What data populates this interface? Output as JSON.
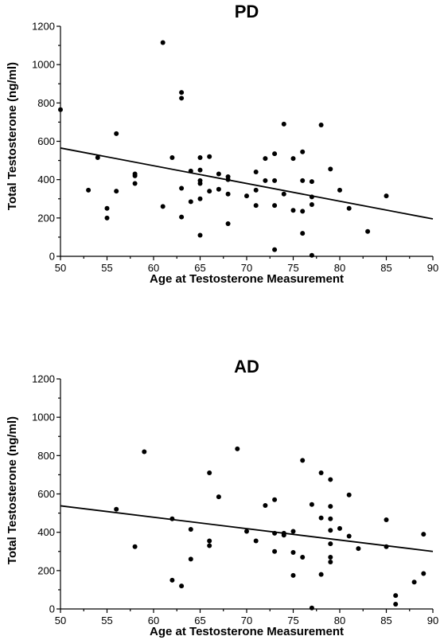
{
  "chart_data": [
    {
      "type": "scatter",
      "title": "PD",
      "xlabel": "Age at Testosterone Measurement",
      "ylabel": "Total Testosterone (ng/ml)",
      "xlim": [
        50,
        90
      ],
      "ylim": [
        0,
        1200
      ],
      "xticks": [
        "50",
        "55",
        "60",
        "65",
        "70",
        "75",
        "80",
        "85",
        "90"
      ],
      "yticks": [
        "0",
        "200",
        "400",
        "600",
        "800",
        "1000",
        "1200"
      ],
      "grid": false,
      "trendline": {
        "x": [
          50,
          90
        ],
        "y": [
          565,
          195
        ]
      },
      "points": [
        {
          "x": 50,
          "y": 765
        },
        {
          "x": 53,
          "y": 345
        },
        {
          "x": 54,
          "y": 515
        },
        {
          "x": 55,
          "y": 250
        },
        {
          "x": 55,
          "y": 200
        },
        {
          "x": 56,
          "y": 640
        },
        {
          "x": 56,
          "y": 340
        },
        {
          "x": 58,
          "y": 430
        },
        {
          "x": 58,
          "y": 420
        },
        {
          "x": 58,
          "y": 380
        },
        {
          "x": 61,
          "y": 1115
        },
        {
          "x": 61,
          "y": 260
        },
        {
          "x": 62,
          "y": 515
        },
        {
          "x": 63,
          "y": 855
        },
        {
          "x": 63,
          "y": 825
        },
        {
          "x": 63,
          "y": 355
        },
        {
          "x": 63,
          "y": 205
        },
        {
          "x": 64,
          "y": 445
        },
        {
          "x": 64,
          "y": 285
        },
        {
          "x": 65,
          "y": 515
        },
        {
          "x": 65,
          "y": 450
        },
        {
          "x": 65,
          "y": 395
        },
        {
          "x": 65,
          "y": 380
        },
        {
          "x": 65,
          "y": 300
        },
        {
          "x": 65,
          "y": 110
        },
        {
          "x": 66,
          "y": 520
        },
        {
          "x": 66,
          "y": 340
        },
        {
          "x": 67,
          "y": 430
        },
        {
          "x": 67,
          "y": 350
        },
        {
          "x": 68,
          "y": 415
        },
        {
          "x": 68,
          "y": 400
        },
        {
          "x": 68,
          "y": 325
        },
        {
          "x": 68,
          "y": 170
        },
        {
          "x": 70,
          "y": 315
        },
        {
          "x": 71,
          "y": 440
        },
        {
          "x": 71,
          "y": 345
        },
        {
          "x": 71,
          "y": 265
        },
        {
          "x": 72,
          "y": 510
        },
        {
          "x": 72,
          "y": 395
        },
        {
          "x": 73,
          "y": 535
        },
        {
          "x": 73,
          "y": 395
        },
        {
          "x": 73,
          "y": 265
        },
        {
          "x": 73,
          "y": 35
        },
        {
          "x": 74,
          "y": 690
        },
        {
          "x": 74,
          "y": 325
        },
        {
          "x": 75,
          "y": 510
        },
        {
          "x": 75,
          "y": 240
        },
        {
          "x": 76,
          "y": 545
        },
        {
          "x": 76,
          "y": 395
        },
        {
          "x": 76,
          "y": 235
        },
        {
          "x": 76,
          "y": 120
        },
        {
          "x": 77,
          "y": 390
        },
        {
          "x": 77,
          "y": 310
        },
        {
          "x": 77,
          "y": 270
        },
        {
          "x": 77,
          "y": 5
        },
        {
          "x": 78,
          "y": 685
        },
        {
          "x": 79,
          "y": 455
        },
        {
          "x": 80,
          "y": 345
        },
        {
          "x": 81,
          "y": 250
        },
        {
          "x": 83,
          "y": 130
        },
        {
          "x": 85,
          "y": 315
        }
      ]
    },
    {
      "type": "scatter",
      "title": "AD",
      "xlabel": "Age at Testosterone Measurement",
      "ylabel": "Total Testosterone (ng/ml)",
      "xlim": [
        50,
        90
      ],
      "ylim": [
        0,
        1200
      ],
      "xticks": [
        "50",
        "55",
        "60",
        "65",
        "70",
        "75",
        "80",
        "85",
        "90"
      ],
      "yticks": [
        "0",
        "200",
        "400",
        "600",
        "800",
        "1000",
        "1200"
      ],
      "grid": false,
      "trendline": {
        "x": [
          50,
          90
        ],
        "y": [
          538,
          300
        ]
      },
      "points": [
        {
          "x": 56,
          "y": 520
        },
        {
          "x": 58,
          "y": 325
        },
        {
          "x": 59,
          "y": 820
        },
        {
          "x": 62,
          "y": 470
        },
        {
          "x": 62,
          "y": 150
        },
        {
          "x": 63,
          "y": 120
        },
        {
          "x": 64,
          "y": 415
        },
        {
          "x": 64,
          "y": 260
        },
        {
          "x": 66,
          "y": 710
        },
        {
          "x": 66,
          "y": 355
        },
        {
          "x": 66,
          "y": 330
        },
        {
          "x": 67,
          "y": 585
        },
        {
          "x": 69,
          "y": 835
        },
        {
          "x": 70,
          "y": 405
        },
        {
          "x": 71,
          "y": 355
        },
        {
          "x": 72,
          "y": 540
        },
        {
          "x": 73,
          "y": 570
        },
        {
          "x": 73,
          "y": 395
        },
        {
          "x": 73,
          "y": 300
        },
        {
          "x": 74,
          "y": 395
        },
        {
          "x": 74,
          "y": 385
        },
        {
          "x": 75,
          "y": 405
        },
        {
          "x": 75,
          "y": 295
        },
        {
          "x": 75,
          "y": 175
        },
        {
          "x": 76,
          "y": 775
        },
        {
          "x": 76,
          "y": 270
        },
        {
          "x": 77,
          "y": 545
        },
        {
          "x": 77,
          "y": 5
        },
        {
          "x": 78,
          "y": 710
        },
        {
          "x": 78,
          "y": 475
        },
        {
          "x": 78,
          "y": 180
        },
        {
          "x": 79,
          "y": 675
        },
        {
          "x": 79,
          "y": 535
        },
        {
          "x": 79,
          "y": 470
        },
        {
          "x": 79,
          "y": 410
        },
        {
          "x": 79,
          "y": 340
        },
        {
          "x": 79,
          "y": 270
        },
        {
          "x": 79,
          "y": 245
        },
        {
          "x": 80,
          "y": 420
        },
        {
          "x": 81,
          "y": 595
        },
        {
          "x": 81,
          "y": 380
        },
        {
          "x": 82,
          "y": 315
        },
        {
          "x": 85,
          "y": 465
        },
        {
          "x": 85,
          "y": 325
        },
        {
          "x": 86,
          "y": 70
        },
        {
          "x": 86,
          "y": 25
        },
        {
          "x": 88,
          "y": 140
        },
        {
          "x": 89,
          "y": 390
        },
        {
          "x": 89,
          "y": 185
        }
      ]
    }
  ]
}
